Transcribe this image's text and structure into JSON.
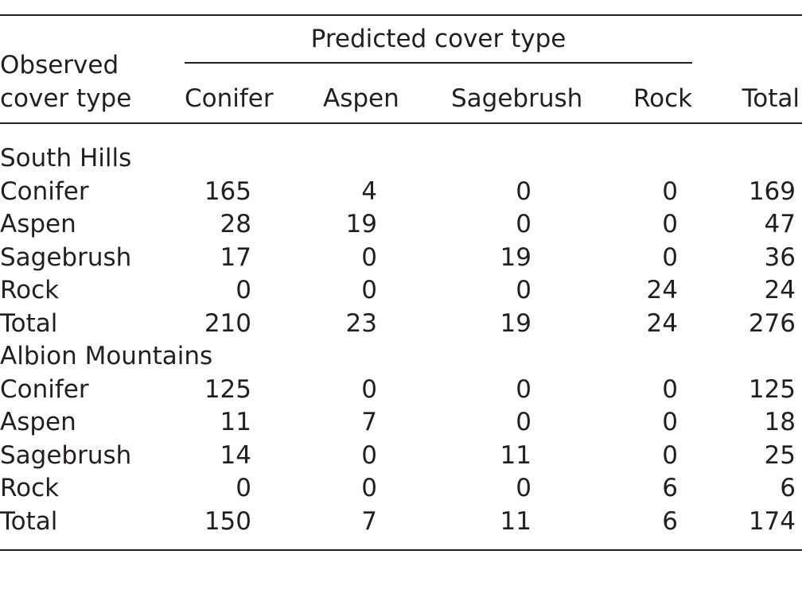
{
  "table": {
    "header": {
      "observed_line1": "Observed",
      "observed_line2": "cover type",
      "predicted_span": "Predicted cover type",
      "columns": [
        "Conifer",
        "Aspen",
        "Sagebrush",
        "Rock"
      ],
      "total": "Total"
    },
    "sections": [
      {
        "name": "South Hills",
        "rows": [
          {
            "label": "Conifer",
            "values": [
              "165",
              "4",
              "0",
              "0",
              "169"
            ]
          },
          {
            "label": "Aspen",
            "values": [
              "28",
              "19",
              "0",
              "0",
              "47"
            ]
          },
          {
            "label": "Sagebrush",
            "values": [
              "17",
              "0",
              "19",
              "0",
              "36"
            ]
          },
          {
            "label": "Rock",
            "values": [
              "0",
              "0",
              "0",
              "24",
              "24"
            ]
          },
          {
            "label": "Total",
            "values": [
              "210",
              "23",
              "19",
              "24",
              "276"
            ]
          }
        ]
      },
      {
        "name": "Albion Mountains",
        "rows": [
          {
            "label": "Conifer",
            "values": [
              "125",
              "0",
              "0",
              "0",
              "125"
            ]
          },
          {
            "label": "Aspen",
            "values": [
              "11",
              "7",
              "0",
              "0",
              "18"
            ]
          },
          {
            "label": "Sagebrush",
            "values": [
              "14",
              "0",
              "11",
              "0",
              "25"
            ]
          },
          {
            "label": "Rock",
            "values": [
              "0",
              "0",
              "0",
              "6",
              "6"
            ]
          },
          {
            "label": "Total",
            "values": [
              "150",
              "7",
              "11",
              "6",
              "174"
            ]
          }
        ]
      }
    ]
  }
}
